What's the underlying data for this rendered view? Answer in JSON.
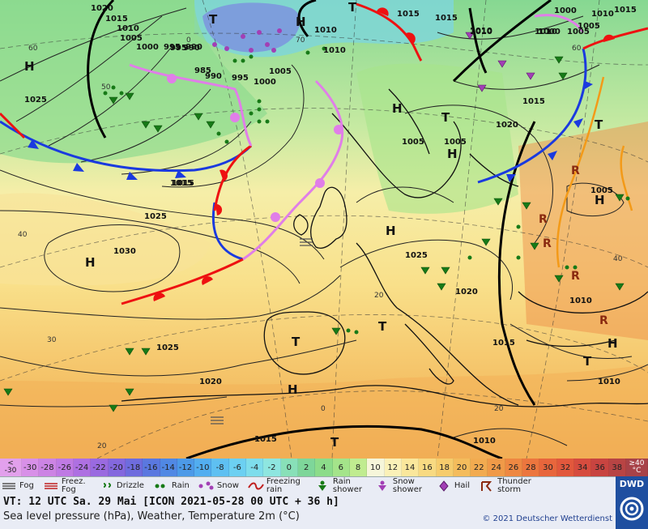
{
  "map": {
    "pressure_labels": [
      "1020",
      "1015",
      "1010",
      "1005",
      "1000",
      "995",
      "990",
      "990",
      "995",
      "1000",
      "1005",
      "1010",
      "1015",
      "1010",
      "1005",
      "1000",
      "1015",
      "1010",
      "1005",
      "1020",
      "1025",
      "1025",
      "1030",
      "1025",
      "1020",
      "1015",
      "1015",
      "1015",
      "1010",
      "1005",
      "1010",
      "1025",
      "1020",
      "1015",
      "1010",
      "1010",
      "1015",
      "1015",
      "1010",
      "1005",
      "1000",
      "995",
      "990",
      "985",
      "1010",
      "1005"
    ],
    "pressure_centers": [
      "H",
      "H",
      "H",
      "H",
      "H",
      "H",
      "H",
      "H",
      "H",
      "T",
      "T",
      "T",
      "T",
      "T",
      "T",
      "T",
      "T"
    ],
    "graticule_labels": [
      "60",
      "50",
      "40",
      "30",
      "20",
      "70",
      "60",
      "20",
      "0",
      "0",
      "40",
      "20"
    ]
  },
  "scale": {
    "first_top": "<",
    "first_bottom": "-30",
    "values": [
      "-30",
      "-28",
      "-26",
      "-24",
      "-22",
      "-20",
      "-18",
      "-16",
      "-14",
      "-12",
      "-10",
      "-8",
      "-6",
      "-4",
      "-2",
      "0",
      "2",
      "4",
      "6",
      "8",
      "10",
      "12",
      "14",
      "16",
      "18",
      "20",
      "22",
      "24",
      "26",
      "28",
      "30",
      "32",
      "34",
      "36",
      "38"
    ],
    "colors": [
      "#d890e8",
      "#cc84e4",
      "#bf7ae4",
      "#ae70e2",
      "#9a6ae0",
      "#8468de",
      "#6e6cde",
      "#5a78e0",
      "#5088e4",
      "#4c9ae8",
      "#52aef0",
      "#5ec0f2",
      "#6cd0f2",
      "#7eddec",
      "#8ee6e0",
      "#88e0b8",
      "#7ed69a",
      "#8cdc8a",
      "#a4e48a",
      "#c0ec90",
      "#f6f6da",
      "#fbf1b8",
      "#fae79c",
      "#f8da82",
      "#f6cc6c",
      "#f4bc5c",
      "#f2ab50",
      "#f09a48",
      "#ee8842",
      "#ec763e",
      "#e8663c",
      "#e2583c",
      "#d64c3e",
      "#c84440",
      "#b84444"
    ],
    "last_top": "≥40",
    "last_bottom": "°C"
  },
  "legend": [
    "Fog",
    "Freez. Fog",
    "Drizzle",
    "Rain",
    "Snow",
    "Freezing rain",
    "Rain shower",
    "Snow shower",
    "Hail",
    "Thunder storm"
  ],
  "info": {
    "valid_time": "VT: 12 UTC Sa.  29 Mai [ICON 2021-05-28  00 UTC + 36 h]",
    "parameter": "Sea level pressure (hPa), Weather, Temperature 2m (°C)",
    "copyright": "© 2021 Deutscher Wetterdienst",
    "logo_text": "DWD"
  }
}
